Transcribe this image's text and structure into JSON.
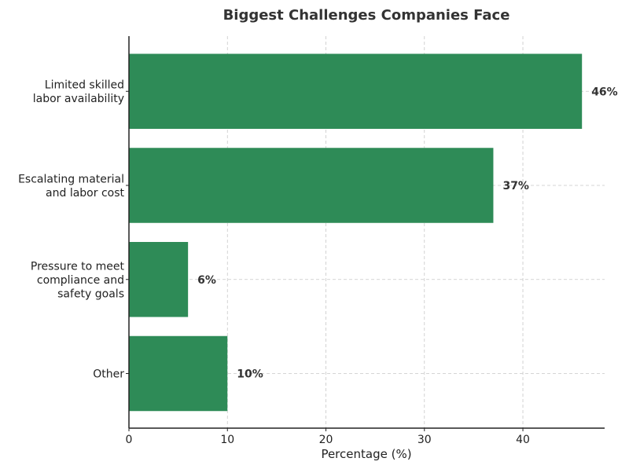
{
  "chart_data": {
    "type": "bar",
    "orientation": "horizontal",
    "title": "Biggest Challenges Companies Face",
    "xlabel": "Percentage (%)",
    "ylabel": "",
    "categories": [
      [
        "Limited skilled",
        "labor availability"
      ],
      [
        "Escalating material",
        "and labor cost"
      ],
      [
        "Pressure to meet",
        "compliance and",
        "safety goals"
      ],
      [
        "Other"
      ]
    ],
    "values": [
      46,
      37,
      6,
      10
    ],
    "value_labels": [
      "46%",
      "37%",
      "6%",
      "10%"
    ],
    "xlim": [
      0,
      48.3
    ],
    "xticks": [
      0,
      10,
      20,
      30,
      40
    ],
    "grid": true,
    "colors": {
      "bar": "#2e8b57",
      "text": "#333333",
      "grid": "#c8c8c8"
    }
  }
}
